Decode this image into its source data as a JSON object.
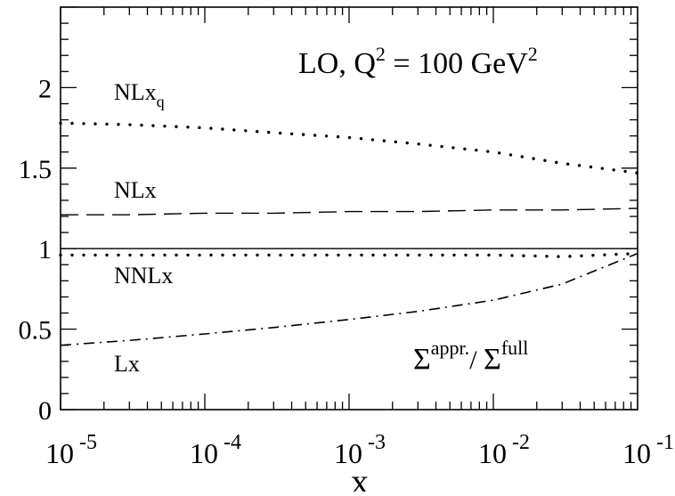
{
  "chart_data": {
    "type": "line",
    "x_scale": "log",
    "xlim": [
      1e-05,
      0.1
    ],
    "ylim": [
      0,
      2.5
    ],
    "xlabel": "x",
    "ylabel": "",
    "title": {
      "prefix": "LO, Q",
      "sup1": "2",
      "mid": " = 100 GeV",
      "sup2": "2"
    },
    "ratio_label": {
      "num": "Σ",
      "num_sup": "appr.",
      "slash": "/ ",
      "den": "Σ",
      "den_sup": "full"
    },
    "x_ticks": [
      {
        "base": "10",
        "exp": "-5",
        "value": 1e-05
      },
      {
        "base": "10",
        "exp": "-4",
        "value": 0.0001
      },
      {
        "base": "10",
        "exp": "-3",
        "value": 0.001
      },
      {
        "base": "10",
        "exp": "-2",
        "value": 0.01
      },
      {
        "base": "10",
        "exp": "-1",
        "value": 0.1
      }
    ],
    "y_ticks": [
      {
        "label": "0",
        "value": 0
      },
      {
        "label": "0.5",
        "value": 0.5
      },
      {
        "label": "1",
        "value": 1
      },
      {
        "label": "1.5",
        "value": 1.5
      },
      {
        "label": "2",
        "value": 2
      }
    ],
    "reference_line": {
      "y": 1
    },
    "series": [
      {
        "name": "NLx_q",
        "label_main": "NLx",
        "label_sub": "q",
        "style": "dotted",
        "x": [
          1e-05,
          3e-05,
          0.0001,
          0.0003,
          0.001,
          0.003,
          0.01,
          0.03,
          0.1
        ],
        "y": [
          1.78,
          1.77,
          1.75,
          1.72,
          1.69,
          1.65,
          1.6,
          1.53,
          1.47
        ]
      },
      {
        "name": "NLx",
        "label_main": "NLx",
        "label_sub": "",
        "style": "dashed",
        "x": [
          1e-05,
          3e-05,
          0.0001,
          0.0003,
          0.001,
          0.003,
          0.01,
          0.03,
          0.1
        ],
        "y": [
          1.21,
          1.21,
          1.22,
          1.22,
          1.23,
          1.23,
          1.24,
          1.24,
          1.25
        ]
      },
      {
        "name": "NNLx",
        "label_main": "NNLx",
        "label_sub": "",
        "style": "dotted",
        "x": [
          1e-05,
          3e-05,
          0.0001,
          0.0003,
          0.001,
          0.003,
          0.01,
          0.03,
          0.1
        ],
        "y": [
          0.96,
          0.96,
          0.96,
          0.96,
          0.96,
          0.96,
          0.96,
          0.95,
          0.97
        ]
      },
      {
        "name": "Lx",
        "label_main": "Lx",
        "label_sub": "",
        "style": "dashdot",
        "x": [
          1e-05,
          3e-05,
          0.0001,
          0.0003,
          0.001,
          0.003,
          0.01,
          0.03,
          0.1
        ],
        "y": [
          0.4,
          0.43,
          0.47,
          0.51,
          0.56,
          0.61,
          0.68,
          0.78,
          0.97
        ]
      }
    ]
  }
}
